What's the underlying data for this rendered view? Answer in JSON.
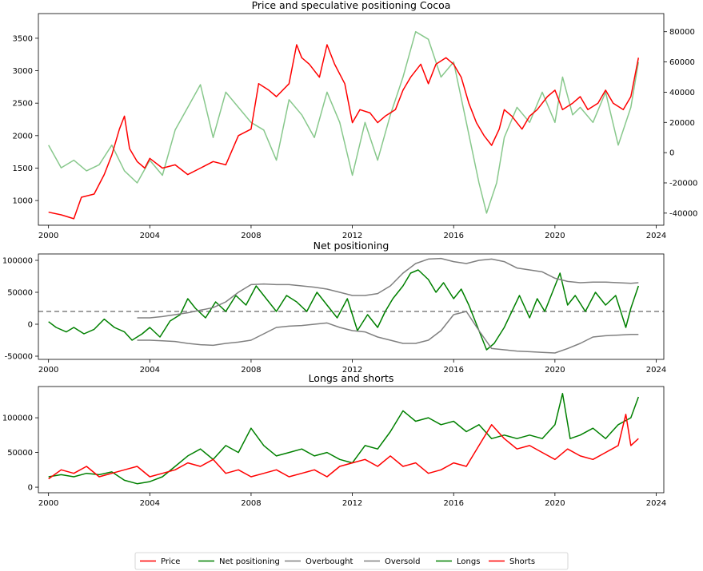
{
  "colors": {
    "price": "#ff0000",
    "net": "#008000",
    "net_light": "#82c586",
    "band": "#808080",
    "longs": "#008000",
    "shorts": "#ff0000"
  },
  "legend": [
    "Price",
    "Net positioning",
    "Overbought",
    "Oversold",
    "Longs",
    "Shorts"
  ],
  "chart_data": [
    {
      "type": "line",
      "title": "Price and speculative positioning Cocoa",
      "xlim": [
        1999.6,
        2024.3
      ],
      "ylim": [
        620,
        3880
      ],
      "y2lim": [
        -48000,
        92000
      ],
      "xticks": [
        "2000",
        "2004",
        "2008",
        "2012",
        "2016",
        "2020",
        "2024"
      ],
      "yticks": [
        "1000",
        "1500",
        "2000",
        "2500",
        "3000",
        "3500"
      ],
      "y2ticks": [
        "-40000",
        "-20000",
        "0",
        "20000",
        "40000",
        "60000",
        "80000"
      ],
      "series": [
        {
          "name": "Price",
          "axis": "left",
          "x": [
            2000.0,
            2000.5,
            2001.0,
            2001.3,
            2001.8,
            2002.2,
            2002.5,
            2002.8,
            2003.0,
            2003.2,
            2003.5,
            2003.8,
            2004.0,
            2004.5,
            2005.0,
            2005.5,
            2006.0,
            2006.5,
            2007.0,
            2007.5,
            2008.0,
            2008.3,
            2008.7,
            2009.0,
            2009.5,
            2009.8,
            2010.0,
            2010.3,
            2010.7,
            2011.0,
            2011.3,
            2011.7,
            2012.0,
            2012.3,
            2012.7,
            2013.0,
            2013.3,
            2013.7,
            2014.0,
            2014.3,
            2014.7,
            2015.0,
            2015.3,
            2015.7,
            2016.0,
            2016.3,
            2016.6,
            2016.9,
            2017.2,
            2017.5,
            2017.8,
            2018.0,
            2018.3,
            2018.7,
            2019.0,
            2019.3,
            2019.7,
            2020.0,
            2020.3,
            2020.7,
            2021.0,
            2021.3,
            2021.7,
            2022.0,
            2022.3,
            2022.7,
            2023.0,
            2023.3
          ],
          "y": [
            820,
            780,
            720,
            1050,
            1100,
            1400,
            1700,
            2100,
            2300,
            1800,
            1600,
            1500,
            1650,
            1500,
            1550,
            1400,
            1500,
            1600,
            1550,
            2000,
            2100,
            2800,
            2700,
            2600,
            2800,
            3400,
            3200,
            3100,
            2900,
            3400,
            3100,
            2800,
            2200,
            2400,
            2350,
            2200,
            2300,
            2400,
            2700,
            2900,
            3100,
            2800,
            3100,
            3200,
            3100,
            2900,
            2500,
            2200,
            2000,
            1850,
            2100,
            2400,
            2300,
            2100,
            2300,
            2400,
            2600,
            2700,
            2400,
            2500,
            2600,
            2400,
            2500,
            2700,
            2500,
            2400,
            2600,
            3200
          ]
        },
        {
          "name": "Net positioning",
          "axis": "right",
          "x": [
            2000.0,
            2000.5,
            2001.0,
            2001.5,
            2002.0,
            2002.5,
            2003.0,
            2003.5,
            2004.0,
            2004.5,
            2005.0,
            2005.5,
            2006.0,
            2006.5,
            2007.0,
            2007.5,
            2008.0,
            2008.5,
            2009.0,
            2009.5,
            2010.0,
            2010.5,
            2011.0,
            2011.5,
            2012.0,
            2012.5,
            2013.0,
            2013.5,
            2014.0,
            2014.5,
            2015.0,
            2015.5,
            2016.0,
            2016.5,
            2017.0,
            2017.3,
            2017.7,
            2018.0,
            2018.5,
            2019.0,
            2019.5,
            2020.0,
            2020.3,
            2020.7,
            2021.0,
            2021.5,
            2022.0,
            2022.5,
            2023.0,
            2023.3
          ],
          "y": [
            5000,
            -10000,
            -5000,
            -12000,
            -8000,
            5000,
            -12000,
            -20000,
            -5000,
            -15000,
            15000,
            30000,
            45000,
            10000,
            40000,
            30000,
            20000,
            15000,
            -5000,
            35000,
            25000,
            10000,
            40000,
            20000,
            -15000,
            20000,
            -5000,
            25000,
            50000,
            80000,
            75000,
            50000,
            60000,
            20000,
            -20000,
            -40000,
            -20000,
            10000,
            30000,
            20000,
            40000,
            20000,
            50000,
            25000,
            30000,
            20000,
            40000,
            5000,
            30000,
            60000
          ]
        }
      ]
    },
    {
      "type": "line",
      "title": "Net positioning",
      "xlim": [
        1999.6,
        2024.3
      ],
      "ylim": [
        -55000,
        110000
      ],
      "xticks": [
        "2000",
        "2004",
        "2008",
        "2012",
        "2016",
        "2020",
        "2024"
      ],
      "yticks": [
        "-50000",
        "0",
        "50000",
        "100000"
      ],
      "reference_line": 20000,
      "series": [
        {
          "name": "Net positioning",
          "x": [
            2000.0,
            2000.3,
            2000.7,
            2001.0,
            2001.4,
            2001.8,
            2002.2,
            2002.6,
            2003.0,
            2003.3,
            2003.7,
            2004.0,
            2004.4,
            2004.8,
            2005.2,
            2005.5,
            2005.8,
            2006.2,
            2006.6,
            2007.0,
            2007.4,
            2007.8,
            2008.2,
            2008.6,
            2009.0,
            2009.4,
            2009.8,
            2010.2,
            2010.6,
            2011.0,
            2011.4,
            2011.8,
            2012.2,
            2012.6,
            2013.0,
            2013.3,
            2013.6,
            2014.0,
            2014.3,
            2014.6,
            2015.0,
            2015.3,
            2015.6,
            2016.0,
            2016.3,
            2016.6,
            2017.0,
            2017.3,
            2017.6,
            2018.0,
            2018.3,
            2018.6,
            2019.0,
            2019.3,
            2019.6,
            2020.0,
            2020.2,
            2020.5,
            2020.8,
            2021.2,
            2021.6,
            2022.0,
            2022.4,
            2022.8,
            2023.0,
            2023.3
          ],
          "y": [
            4000,
            -5000,
            -12000,
            -5000,
            -15000,
            -8000,
            8000,
            -5000,
            -12000,
            -25000,
            -15000,
            -5000,
            -20000,
            5000,
            15000,
            40000,
            25000,
            10000,
            35000,
            20000,
            45000,
            30000,
            60000,
            40000,
            20000,
            45000,
            35000,
            20000,
            50000,
            30000,
            10000,
            40000,
            -10000,
            15000,
            -5000,
            20000,
            40000,
            60000,
            80000,
            85000,
            70000,
            50000,
            65000,
            40000,
            55000,
            30000,
            -10000,
            -40000,
            -30000,
            -5000,
            20000,
            45000,
            10000,
            40000,
            20000,
            60000,
            80000,
            30000,
            45000,
            20000,
            50000,
            30000,
            45000,
            -5000,
            25000,
            60000
          ]
        },
        {
          "name": "Overbought",
          "x": [
            2003.5,
            2004.0,
            2004.5,
            2005.0,
            2005.5,
            2006.0,
            2006.5,
            2007.0,
            2007.5,
            2008.0,
            2008.5,
            2009.0,
            2009.5,
            2010.0,
            2010.5,
            2011.0,
            2011.5,
            2012.0,
            2012.5,
            2013.0,
            2013.5,
            2014.0,
            2014.5,
            2015.0,
            2015.5,
            2016.0,
            2016.5,
            2017.0,
            2017.5,
            2018.0,
            2018.5,
            2019.0,
            2019.5,
            2020.0,
            2020.5,
            2021.0,
            2021.5,
            2022.0,
            2022.5,
            2023.0,
            2023.3
          ],
          "y": [
            10000,
            10000,
            12000,
            15000,
            18000,
            22000,
            26000,
            35000,
            50000,
            62000,
            63000,
            62000,
            62000,
            60000,
            58000,
            55000,
            50000,
            45000,
            45000,
            48000,
            60000,
            80000,
            95000,
            102000,
            103000,
            98000,
            95000,
            100000,
            102000,
            98000,
            88000,
            85000,
            82000,
            72000,
            67000,
            65000,
            66000,
            66000,
            65000,
            64000,
            65000
          ]
        },
        {
          "name": "Oversold",
          "x": [
            2003.5,
            2004.0,
            2004.5,
            2005.0,
            2005.5,
            2006.0,
            2006.5,
            2007.0,
            2007.5,
            2008.0,
            2008.5,
            2009.0,
            2009.5,
            2010.0,
            2010.5,
            2011.0,
            2011.5,
            2012.0,
            2012.5,
            2013.0,
            2013.5,
            2014.0,
            2014.5,
            2015.0,
            2015.5,
            2016.0,
            2016.5,
            2017.0,
            2017.5,
            2018.0,
            2018.5,
            2019.0,
            2019.5,
            2020.0,
            2020.5,
            2021.0,
            2021.5,
            2022.0,
            2022.5,
            2023.0,
            2023.3
          ],
          "y": [
            -25000,
            -25000,
            -26000,
            -27000,
            -30000,
            -32000,
            -33000,
            -30000,
            -28000,
            -25000,
            -15000,
            -5000,
            -3000,
            -2000,
            0,
            2000,
            -5000,
            -10000,
            -12000,
            -20000,
            -25000,
            -30000,
            -30000,
            -25000,
            -10000,
            15000,
            20000,
            -10000,
            -38000,
            -40000,
            -42000,
            -43000,
            -44000,
            -45000,
            -38000,
            -30000,
            -20000,
            -18000,
            -17000,
            -16000,
            -16000
          ]
        }
      ]
    },
    {
      "type": "line",
      "title": "Longs and shorts",
      "xlim": [
        1999.6,
        2024.3
      ],
      "ylim": [
        -8000,
        145000
      ],
      "xticks": [
        "2000",
        "2004",
        "2008",
        "2012",
        "2016",
        "2020",
        "2024"
      ],
      "yticks": [
        "0",
        "50000",
        "100000"
      ],
      "series": [
        {
          "name": "Longs",
          "x": [
            2000.0,
            2000.5,
            2001.0,
            2001.5,
            2002.0,
            2002.5,
            2003.0,
            2003.5,
            2004.0,
            2004.5,
            2005.0,
            2005.5,
            2006.0,
            2006.5,
            2007.0,
            2007.5,
            2008.0,
            2008.5,
            2009.0,
            2009.5,
            2010.0,
            2010.5,
            2011.0,
            2011.5,
            2012.0,
            2012.5,
            2013.0,
            2013.5,
            2014.0,
            2014.5,
            2015.0,
            2015.5,
            2016.0,
            2016.5,
            2017.0,
            2017.5,
            2018.0,
            2018.5,
            2019.0,
            2019.5,
            2020.0,
            2020.3,
            2020.6,
            2021.0,
            2021.5,
            2022.0,
            2022.5,
            2023.0,
            2023.3
          ],
          "y": [
            15000,
            18000,
            15000,
            20000,
            18000,
            22000,
            10000,
            5000,
            8000,
            15000,
            30000,
            45000,
            55000,
            40000,
            60000,
            50000,
            85000,
            60000,
            45000,
            50000,
            55000,
            45000,
            50000,
            40000,
            35000,
            60000,
            55000,
            80000,
            110000,
            95000,
            100000,
            90000,
            95000,
            80000,
            90000,
            70000,
            75000,
            70000,
            75000,
            70000,
            90000,
            135000,
            70000,
            75000,
            85000,
            70000,
            90000,
            100000,
            130000
          ]
        },
        {
          "name": "Shorts",
          "x": [
            2000.0,
            2000.5,
            2001.0,
            2001.5,
            2002.0,
            2002.5,
            2003.0,
            2003.5,
            2004.0,
            2004.5,
            2005.0,
            2005.5,
            2006.0,
            2006.5,
            2007.0,
            2007.5,
            2008.0,
            2008.5,
            2009.0,
            2009.5,
            2010.0,
            2010.5,
            2011.0,
            2011.5,
            2012.0,
            2012.5,
            2013.0,
            2013.5,
            2014.0,
            2014.5,
            2015.0,
            2015.5,
            2016.0,
            2016.5,
            2017.0,
            2017.5,
            2018.0,
            2018.5,
            2019.0,
            2019.5,
            2020.0,
            2020.5,
            2021.0,
            2021.5,
            2022.0,
            2022.5,
            2022.8,
            2023.0,
            2023.3
          ],
          "y": [
            12000,
            25000,
            20000,
            30000,
            15000,
            20000,
            25000,
            30000,
            15000,
            20000,
            25000,
            35000,
            30000,
            40000,
            20000,
            25000,
            15000,
            20000,
            25000,
            15000,
            20000,
            25000,
            15000,
            30000,
            35000,
            40000,
            30000,
            45000,
            30000,
            35000,
            20000,
            25000,
            35000,
            30000,
            60000,
            90000,
            70000,
            55000,
            60000,
            50000,
            40000,
            55000,
            45000,
            40000,
            50000,
            60000,
            105000,
            60000,
            70000
          ]
        }
      ]
    }
  ]
}
